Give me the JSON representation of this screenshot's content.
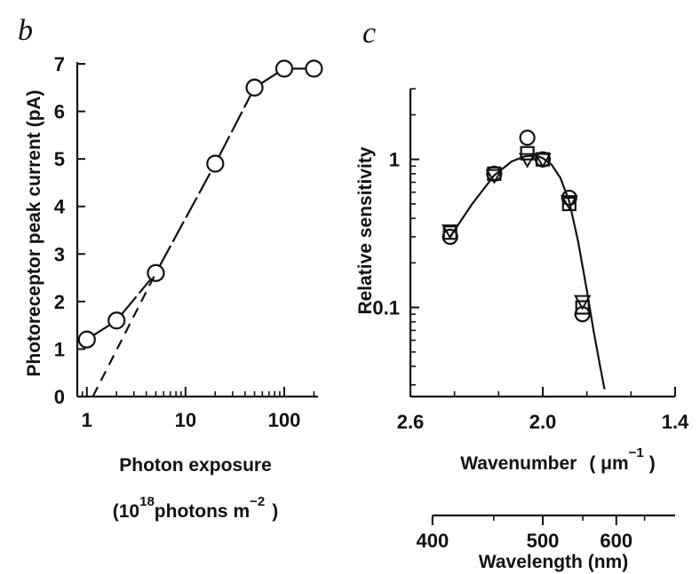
{
  "chart_data": [
    {
      "panel_label": "b",
      "type": "scatter",
      "scale_x": "log",
      "xlim": [
        0.8,
        220
      ],
      "ylim": [
        0,
        7
      ],
      "x_ticks": [
        1,
        10,
        100
      ],
      "x_tick_labels": [
        "1",
        "10",
        "100"
      ],
      "y_ticks": [
        0,
        1,
        2,
        3,
        4,
        5,
        6,
        7
      ],
      "y_tick_labels": [
        "0",
        "1",
        "2",
        "3",
        "4",
        "5",
        "6",
        "7"
      ],
      "ylabel": "Photoreceptor peak current (pA)",
      "xlabel_line1": "Photon exposure",
      "xlabel_line2_pre": "(10",
      "xlabel_line2_sup": "18",
      "xlabel_line2_mid": "photons m",
      "xlabel_line2_sup2": "−2",
      "xlabel_line2_post": ")",
      "series": [
        {
          "marker": "circle",
          "x": [
            1,
            2,
            5,
            20,
            50,
            100,
            200
          ],
          "y": [
            1.2,
            1.6,
            2.6,
            4.9,
            6.5,
            6.9,
            6.9
          ]
        }
      ],
      "dashed_line": {
        "x": [
          1.15,
          5
        ],
        "y": [
          0,
          2.6
        ]
      }
    },
    {
      "panel_label": "c",
      "type": "scatter",
      "scale_y": "log",
      "x_reversed": true,
      "xlim": [
        2.6,
        1.4
      ],
      "ylim": [
        0.025,
        3.0
      ],
      "x_ticks": [
        2.6,
        2.0,
        1.4
      ],
      "x_tick_labels": [
        "2.6",
        "2.0",
        "1.4"
      ],
      "y_ticks": [
        1,
        0.1
      ],
      "y_tick_labels": [
        "1",
        "0.1"
      ],
      "ylabel": "Relative sensitivity",
      "xlabel_pre": "Wavenumber",
      "xlabel_unit": "( μm",
      "xlabel_sup": "−1",
      "xlabel_post": ")",
      "secondary_axis": {
        "label": "Wavelength (nm)",
        "ticks_nm": [
          400,
          500,
          600
        ],
        "tick_labels": [
          "400",
          "500",
          "600"
        ]
      },
      "series": [
        {
          "marker": "circle",
          "x": [
            2.42,
            2.22,
            2.07,
            2.0,
            1.88,
            1.82
          ],
          "y": [
            0.3,
            0.8,
            1.4,
            1.0,
            0.55,
            0.09
          ]
        },
        {
          "marker": "square",
          "x": [
            2.42,
            2.22,
            2.07,
            2.0,
            1.88,
            1.82
          ],
          "y": [
            0.32,
            0.8,
            1.1,
            1.0,
            0.5,
            0.1
          ]
        },
        {
          "marker": "triangle",
          "x": [
            2.42,
            2.22,
            2.07,
            2.0,
            1.88,
            1.82
          ],
          "y": [
            0.33,
            0.78,
            1.0,
            1.0,
            0.52,
            0.11
          ]
        }
      ],
      "fit_curve": {
        "x": [
          2.42,
          2.32,
          2.22,
          2.14,
          2.08,
          2.03,
          2.0,
          1.96,
          1.92,
          1.88,
          1.84,
          1.8,
          1.77,
          1.74,
          1.72
        ],
        "y": [
          0.3,
          0.5,
          0.78,
          0.97,
          1.05,
          1.06,
          1.02,
          0.92,
          0.75,
          0.52,
          0.28,
          0.13,
          0.07,
          0.04,
          0.028
        ]
      }
    }
  ]
}
